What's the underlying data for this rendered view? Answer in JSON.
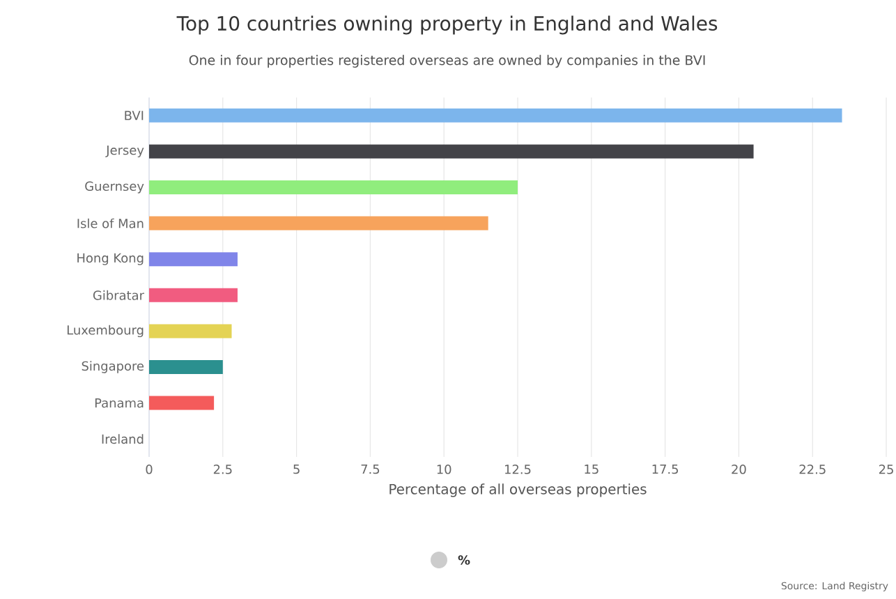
{
  "chart_data": {
    "type": "bar",
    "orientation": "horizontal",
    "title": "Top 10 countries owning property in England and Wales",
    "subtitle": "One in four properties registered overseas are owned by companies in the BVI",
    "xlabel": "Percentage of all overseas properties",
    "categories": [
      "BVI",
      "Jersey",
      "Guernsey",
      "Isle of Man",
      "Hong Kong",
      "Gibratar",
      "Luxembourg",
      "Singapore",
      "Panama",
      "Ireland"
    ],
    "series": [
      {
        "name": "%",
        "color": "#cccccc",
        "colors": [
          "#7cb5ec",
          "#434348",
          "#90ed7d",
          "#f7a35c",
          "#8085e9",
          "#f15c80",
          "#e4d354",
          "#2b908f",
          "#f45b5b",
          "#91e8e1"
        ],
        "values": [
          23.5,
          20.5,
          12.5,
          11.5,
          3.0,
          3.0,
          2.8,
          2.5,
          2.2,
          0
        ]
      }
    ],
    "xlim": [
      0,
      25
    ],
    "xticks": [
      0,
      2.5,
      5,
      7.5,
      10,
      12.5,
      15,
      17.5,
      20,
      22.5,
      25
    ],
    "grid": "x",
    "legend": "bottom",
    "annotations": [
      "Source: Land Registry"
    ]
  }
}
